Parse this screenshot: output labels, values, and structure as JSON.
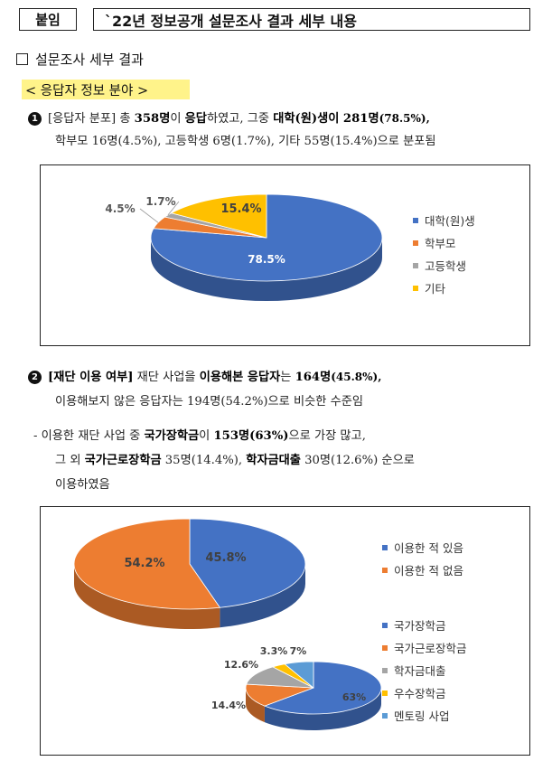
{
  "header": {
    "tag": "붙임",
    "title": "`22년 정보공개 설문조사 결과 세부 내용"
  },
  "section": {
    "title": "설문조사 세부 결과"
  },
  "subheading": "< 응답자 정보 분야 >",
  "item1": {
    "number": "1",
    "line1_prefix": "[응답자 분포] 총 ",
    "line1_total": "358명",
    "line1_mid1": "이 ",
    "line1_resp": "응답",
    "line1_mid2": "하였고, 그중 ",
    "line1_univ": "대학(원)생이 281명",
    "line1_univ_pct": "(78.5%),",
    "line2": "학부모 16명(4.5%), 고등학생 6명(1.7%), 기타 55명(15.4%)으로 분포됨"
  },
  "item2": {
    "number": "2",
    "line1_label": "[재단 이용 여부]",
    "line1_mid": " 재단 사업을 ",
    "line1_used": "이용해본 응답자",
    "line1_mid2": "는 ",
    "line1_count": "164명",
    "line1_pct": "(45.8%),",
    "line2": "이용해보지 않은 응답자는 194명(54.2%)으로 비슷한 수준임",
    "sub_line1_a": "- 이용한 재단 사업 중 ",
    "sub_line1_b": "국가장학금",
    "sub_line1_c": "이 ",
    "sub_line1_d": "153명(63%)",
    "sub_line1_e": "으로 가장 많고,",
    "sub_line2_a": "그 외 ",
    "sub_line2_b": "국가근로장학금",
    "sub_line2_c": " 35명(14.4%), ",
    "sub_line2_d": "학자금대출",
    "sub_line2_e": " 30명(12.6%) 순으로",
    "sub_line3": "이용하였음"
  },
  "chart_data": [
    {
      "type": "pie",
      "categories": [
        "대학(원)생",
        "학부모",
        "고등학생",
        "기타"
      ],
      "values": [
        78.5,
        4.5,
        1.7,
        15.4
      ],
      "labels": [
        "78.5%",
        "4.5%",
        "1.7%",
        "15.4%"
      ],
      "colors": [
        "#4472c4",
        "#ed7d31",
        "#a5a5a5",
        "#ffc000"
      ],
      "legend_position": "right"
    },
    {
      "type": "pie",
      "categories": [
        "이용한 적 있음",
        "이용한 적 없음"
      ],
      "values": [
        45.8,
        54.2
      ],
      "labels": [
        "45.8%",
        "54.2%"
      ],
      "colors": [
        "#4472c4",
        "#ed7d31"
      ],
      "legend_position": "right"
    },
    {
      "type": "pie",
      "categories": [
        "국가장학금",
        "국가근로장학금",
        "학자금대출",
        "우수장학금",
        "멘토링 사업"
      ],
      "values": [
        63,
        14.4,
        12.6,
        3.3,
        7
      ],
      "labels": [
        "63%",
        "14.4%",
        "12.6%",
        "3.3%",
        "7%"
      ],
      "colors": [
        "#4472c4",
        "#ed7d31",
        "#a5a5a5",
        "#ffc000",
        "#5b9bd5"
      ],
      "legend_position": "right"
    }
  ]
}
